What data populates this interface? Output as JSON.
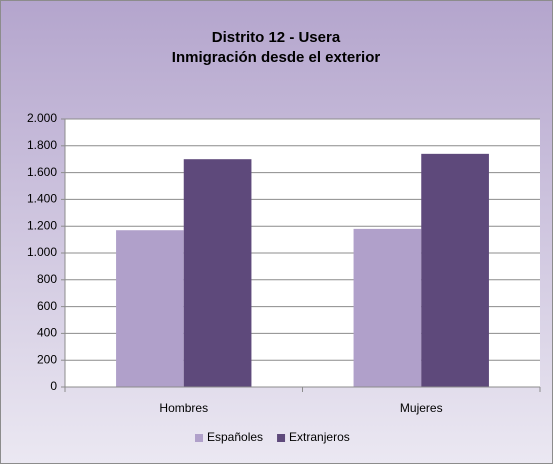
{
  "chart_data": {
    "type": "bar",
    "title": "Distrito 12 - Usera",
    "subtitle": "Inmigración desde el exterior",
    "categories": [
      "Hombres",
      "Mujeres"
    ],
    "series": [
      {
        "name": "Españoles",
        "color": "#b0a0ca",
        "values": [
          1170,
          1180
        ]
      },
      {
        "name": "Extranjeros",
        "color": "#5e497b",
        "values": [
          1700,
          1740
        ]
      }
    ],
    "ylim": [
      0,
      2000
    ],
    "yticks": [
      0,
      200,
      400,
      600,
      800,
      {
        "value": 1000,
        "label": "1.000"
      },
      {
        "value": 1200,
        "label": "1.200"
      },
      {
        "value": 1400,
        "label": "1.400"
      },
      {
        "value": 1600,
        "label": "1.600"
      },
      {
        "value": 1800,
        "label": "1.800"
      },
      {
        "value": 2000,
        "label": "2.000"
      }
    ],
    "grid": true,
    "legend": "bottom"
  }
}
